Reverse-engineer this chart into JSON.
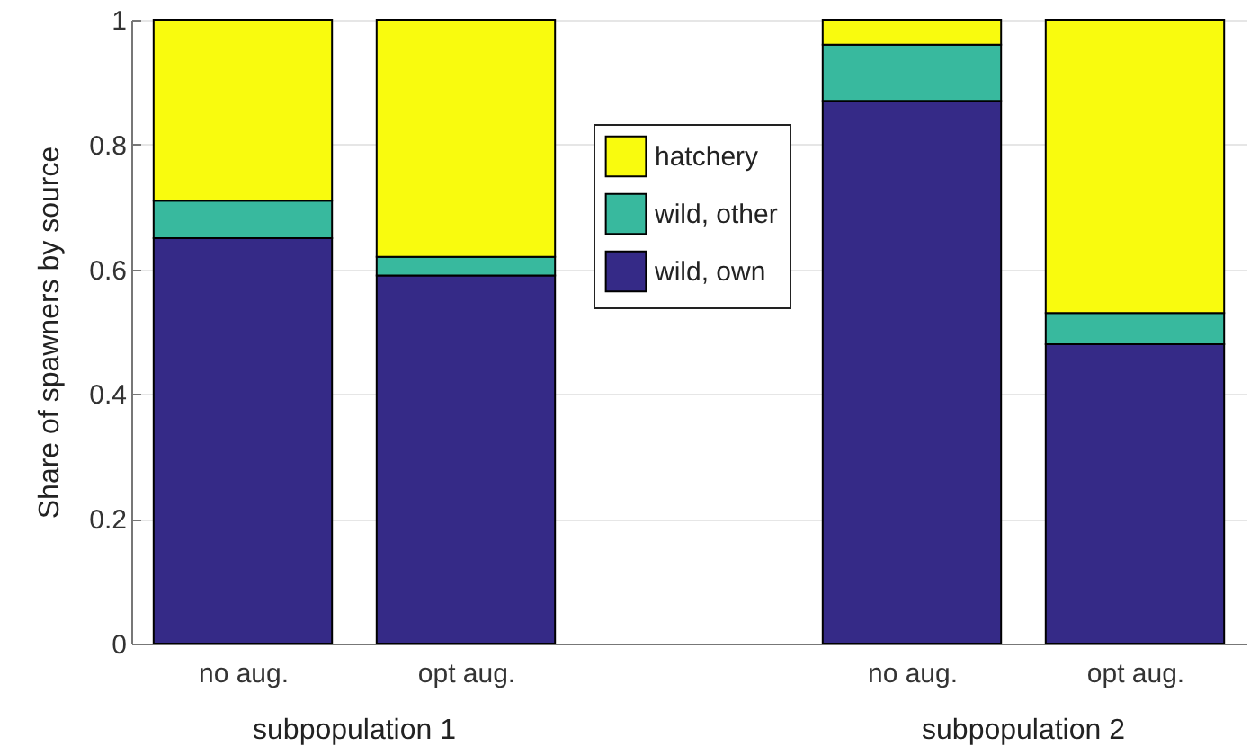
{
  "chart_data": {
    "type": "bar",
    "stacked": true,
    "ylabel": "Share of spawners by source",
    "categories": [
      "no aug.",
      "opt aug.",
      null,
      "no aug.",
      "opt aug."
    ],
    "series": [
      {
        "name": "wild, own",
        "color": "#352a87",
        "values": [
          0.65,
          0.59,
          null,
          0.87,
          0.48
        ]
      },
      {
        "name": "wild, other",
        "color": "#38b99e",
        "values": [
          0.06,
          0.03,
          null,
          0.09,
          0.05
        ]
      },
      {
        "name": "hatchery",
        "color": "#f9fb0e",
        "values": [
          0.29,
          0.38,
          null,
          0.04,
          0.47
        ]
      }
    ],
    "annotations": [
      "subpopulation 1",
      "subpopulation 2"
    ],
    "ylim": [
      0,
      1
    ],
    "yticks": [
      0,
      0.2,
      0.4,
      0.6,
      0.8,
      1
    ],
    "grid": "y",
    "legend": "top"
  }
}
